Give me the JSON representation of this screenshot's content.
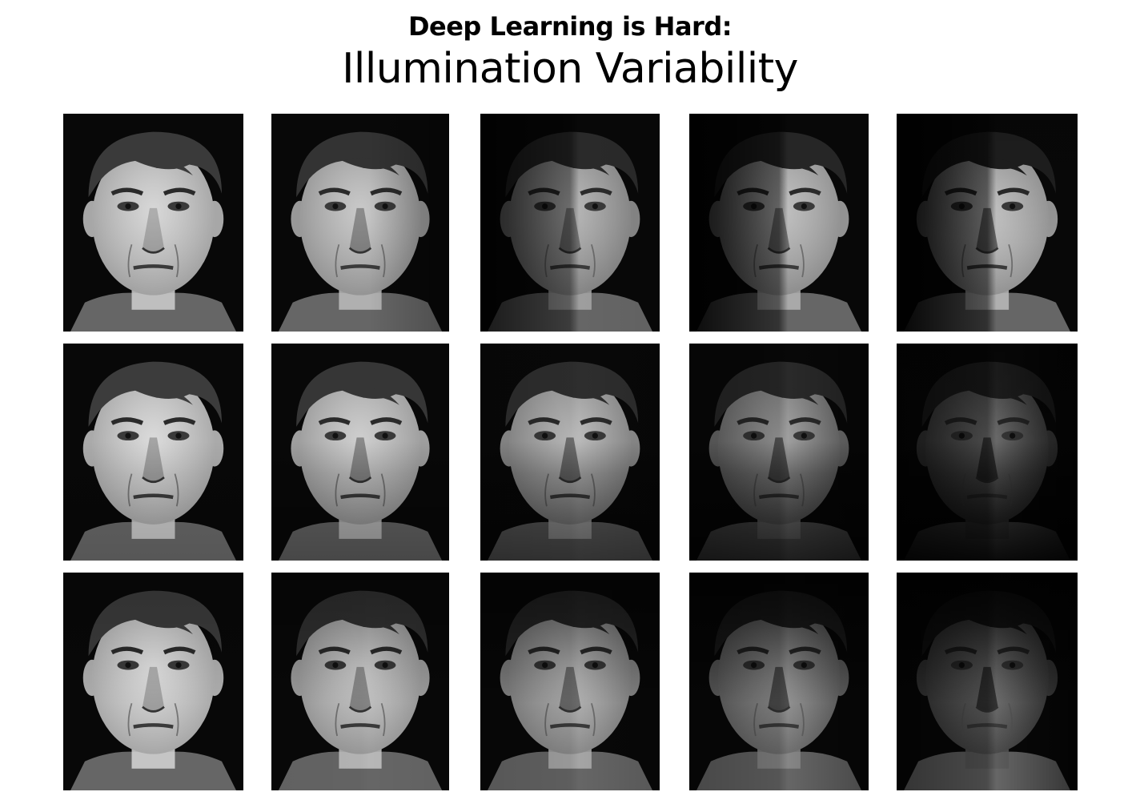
{
  "slide": {
    "kicker": "Deep Learning is Hard:",
    "title": "Illumination Variability"
  },
  "face_grid": {
    "rows": 3,
    "columns": 5,
    "photos": [
      {
        "row": 1,
        "col": 1,
        "lighting": "frontal"
      },
      {
        "row": 1,
        "col": 2,
        "lighting": "slight-left"
      },
      {
        "row": 1,
        "col": 3,
        "lighting": "left-side-shadow"
      },
      {
        "row": 1,
        "col": 4,
        "lighting": "strong-side-shadow"
      },
      {
        "row": 1,
        "col": 5,
        "lighting": "half-face-shadow"
      },
      {
        "row": 2,
        "col": 1,
        "lighting": "frontal-above"
      },
      {
        "row": 2,
        "col": 2,
        "lighting": "above"
      },
      {
        "row": 2,
        "col": 3,
        "lighting": "high-above"
      },
      {
        "row": 2,
        "col": 4,
        "lighting": "top-down-harsh"
      },
      {
        "row": 2,
        "col": 5,
        "lighting": "extreme-top-down"
      },
      {
        "row": 3,
        "col": 1,
        "lighting": "frontal-below"
      },
      {
        "row": 3,
        "col": 2,
        "lighting": "below"
      },
      {
        "row": 3,
        "col": 3,
        "lighting": "low-below"
      },
      {
        "row": 3,
        "col": 4,
        "lighting": "bottom-up-harsh"
      },
      {
        "row": 3,
        "col": 5,
        "lighting": "extreme-bottom-up"
      }
    ]
  }
}
